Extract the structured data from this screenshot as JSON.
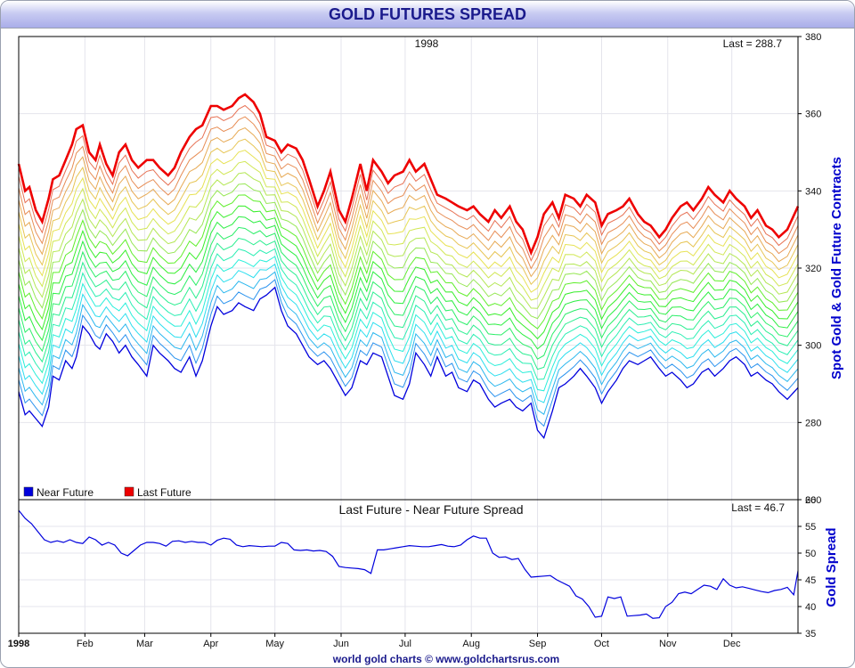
{
  "title": "GOLD FUTURES SPREAD",
  "footer": "world gold charts © www.goldchartsrus.com",
  "colors": {
    "near": "#0000dd",
    "last": "#ee0000",
    "spread": "#0000dd",
    "axis_title": "#0000cc",
    "grid": "#e4e4ec"
  },
  "chart_data": [
    {
      "type": "line",
      "year_label": "1998",
      "last_label": "Last = 288.7",
      "ylabel": "Spot Gold & Gold Future Contracts",
      "ylim": [
        260,
        380
      ],
      "yticks": [
        260,
        280,
        300,
        320,
        340,
        360,
        380
      ],
      "num_contracts": 20,
      "months": [
        "1998",
        "Feb",
        "Mar",
        "Apr",
        "May",
        "Jun",
        "Jul",
        "Aug",
        "Sep",
        "Oct",
        "Nov",
        "Dec"
      ],
      "legend": {
        "near": "Near Future",
        "last": "Last Future"
      },
      "series": [
        {
          "name": "Near Future",
          "x": [
            0,
            3,
            5,
            8,
            11,
            14,
            16,
            19,
            22,
            25,
            27,
            30,
            33,
            36,
            38,
            41,
            44,
            47,
            50,
            53,
            56,
            60,
            63,
            66,
            70,
            73,
            76,
            80,
            83,
            86,
            90,
            93,
            96,
            100,
            103,
            106,
            110,
            113,
            116,
            120,
            123,
            126,
            130,
            133,
            136,
            140,
            143,
            146,
            150,
            153,
            156,
            160,
            163,
            166,
            170,
            173,
            176,
            180,
            183,
            186,
            190,
            193,
            196,
            200,
            203,
            206,
            210,
            213,
            216,
            220,
            223,
            226,
            230,
            233,
            236,
            240,
            243,
            246,
            250,
            253,
            256,
            260,
            263,
            266,
            270,
            273,
            276,
            280,
            283,
            286,
            290,
            293,
            296,
            300,
            303,
            306,
            310,
            313,
            316,
            320,
            323,
            326,
            330,
            333,
            336,
            340,
            343,
            346,
            350,
            353,
            356,
            360,
            365
          ],
          "values": [
            288,
            282,
            283,
            281,
            279,
            284,
            292,
            291,
            296,
            294,
            297,
            305,
            303,
            300,
            299,
            303,
            301,
            298,
            300,
            297,
            295,
            292,
            300,
            298,
            296,
            294,
            293,
            297,
            292,
            296,
            305,
            310,
            308,
            309,
            311,
            310,
            309,
            312,
            313,
            315,
            309,
            305,
            303,
            300,
            297,
            295,
            296,
            294,
            290,
            287,
            289,
            296,
            295,
            298,
            297,
            292,
            287,
            286,
            290,
            298,
            295,
            292,
            297,
            292,
            293,
            289,
            288,
            291,
            290,
            286,
            284,
            285,
            286,
            284,
            283,
            285,
            278,
            276,
            283,
            289,
            290,
            292,
            294,
            292,
            289,
            285,
            288,
            291,
            294,
            296,
            295,
            296,
            297,
            294,
            292,
            293,
            291,
            289,
            290,
            293,
            294,
            292,
            294,
            296,
            297,
            295,
            292,
            293,
            291,
            290,
            288,
            286,
            289
          ]
        },
        {
          "name": "Last Future",
          "x": [
            0,
            3,
            5,
            8,
            11,
            14,
            16,
            19,
            22,
            25,
            27,
            30,
            33,
            36,
            38,
            41,
            44,
            47,
            50,
            53,
            56,
            60,
            63,
            66,
            70,
            73,
            76,
            80,
            83,
            86,
            90,
            93,
            96,
            100,
            103,
            106,
            110,
            113,
            116,
            120,
            123,
            126,
            130,
            133,
            136,
            140,
            143,
            146,
            150,
            153,
            156,
            160,
            163,
            166,
            170,
            173,
            176,
            180,
            183,
            186,
            190,
            193,
            196,
            200,
            203,
            206,
            210,
            213,
            216,
            220,
            223,
            226,
            230,
            233,
            236,
            240,
            243,
            246,
            250,
            253,
            256,
            260,
            263,
            266,
            270,
            273,
            276,
            280,
            283,
            286,
            290,
            293,
            296,
            300,
            303,
            306,
            310,
            313,
            316,
            320,
            323,
            326,
            330,
            333,
            336,
            340,
            343,
            346,
            350,
            353,
            356,
            360,
            365
          ],
          "values": [
            347,
            340,
            341,
            335,
            332,
            338,
            343,
            344,
            348,
            352,
            356,
            357,
            350,
            348,
            352,
            347,
            344,
            350,
            352,
            348,
            346,
            348,
            348,
            346,
            344,
            346,
            350,
            354,
            356,
            357,
            362,
            362,
            361,
            362,
            364,
            365,
            363,
            360,
            354,
            353,
            350,
            352,
            351,
            348,
            343,
            336,
            340,
            345,
            335,
            332,
            338,
            347,
            340,
            348,
            345,
            342,
            344,
            345,
            348,
            345,
            347,
            343,
            339,
            338,
            337,
            336,
            335,
            336,
            334,
            332,
            335,
            333,
            336,
            332,
            330,
            324,
            328,
            334,
            337,
            333,
            339,
            338,
            336,
            339,
            337,
            331,
            334,
            335,
            336,
            338,
            334,
            332,
            331,
            328,
            330,
            333,
            336,
            337,
            335,
            338,
            341,
            339,
            337,
            340,
            338,
            336,
            333,
            335,
            331,
            330,
            328,
            330,
            336
          ]
        }
      ]
    },
    {
      "type": "line",
      "title": "Last Future - Near Future Spread",
      "last_label": "Last = 46.7",
      "ylabel": "Gold Spread",
      "ylim": [
        35,
        60
      ],
      "yticks": [
        35,
        40,
        45,
        50,
        55,
        60
      ],
      "series": [
        {
          "name": "Spread",
          "x": [
            0,
            3,
            6,
            9,
            12,
            15,
            18,
            21,
            24,
            27,
            30,
            33,
            36,
            39,
            42,
            45,
            48,
            51,
            54,
            57,
            60,
            63,
            66,
            69,
            72,
            75,
            78,
            81,
            84,
            87,
            90,
            93,
            96,
            99,
            102,
            105,
            108,
            111,
            114,
            117,
            120,
            123,
            126,
            129,
            132,
            135,
            138,
            141,
            144,
            147,
            150,
            153,
            156,
            159,
            162,
            165,
            168,
            171,
            174,
            177,
            180,
            183,
            186,
            189,
            192,
            195,
            198,
            201,
            204,
            207,
            210,
            213,
            216,
            219,
            222,
            225,
            228,
            231,
            234,
            237,
            240,
            243,
            246,
            249,
            252,
            255,
            258,
            261,
            264,
            267,
            270,
            273,
            276,
            279,
            282,
            285,
            288,
            291,
            294,
            297,
            300,
            303,
            306,
            309,
            312,
            315,
            318,
            321,
            324,
            327,
            330,
            333,
            336,
            339,
            342,
            345,
            348,
            351,
            354,
            357,
            360,
            363,
            365
          ],
          "values": [
            58,
            56.5,
            55.5,
            54,
            52.5,
            52,
            52.3,
            52,
            52.5,
            52,
            51.8,
            53,
            52.5,
            51.5,
            52,
            51.5,
            50,
            49.5,
            50.5,
            51.5,
            52,
            52,
            51.8,
            51.3,
            52.2,
            52.3,
            52,
            52.2,
            52,
            52,
            51.5,
            52.4,
            52.8,
            52.6,
            51.5,
            51.2,
            51.4,
            51.3,
            51.2,
            51.3,
            51.3,
            52,
            51.8,
            50.6,
            50.5,
            50.6,
            50.4,
            50.5,
            50.3,
            49.4,
            47.5,
            47.3,
            47.2,
            47.1,
            46.9,
            46.2,
            50.6,
            50.6,
            50.8,
            51,
            51.2,
            51.4,
            51.3,
            51.2,
            51.2,
            51.4,
            51.6,
            51.3,
            51.2,
            51.5,
            52.5,
            53.2,
            52.8,
            52.8,
            50,
            49.2,
            49.3,
            48.8,
            49,
            47,
            45.5,
            45.6,
            45.7,
            45.8,
            45,
            44.4,
            43.8,
            42,
            41.4,
            40,
            38,
            38.2,
            41.8,
            41.5,
            41.8,
            38.2,
            38.3,
            38.4,
            38.6,
            37.8,
            37.9,
            40,
            40.8,
            42.4,
            42.7,
            42.4,
            43.2,
            44,
            43.8,
            43.2,
            45.2,
            44,
            43.5,
            43.7,
            43.4,
            43.1,
            42.8,
            42.6,
            43,
            43.2,
            43.6,
            42.2,
            46.7
          ]
        }
      ]
    }
  ]
}
